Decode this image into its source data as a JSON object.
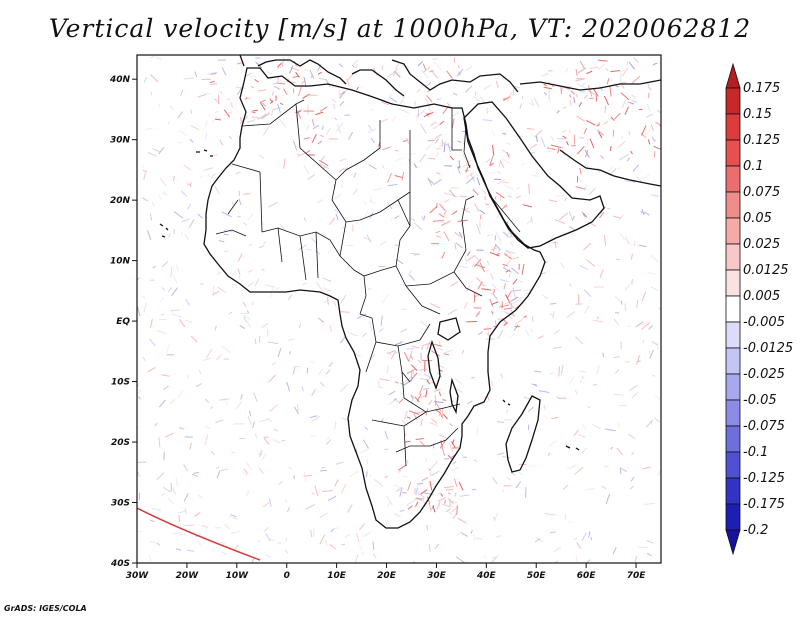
{
  "title": "Vertical velocity [m/s] at 1000hPa, VT: 2020062812",
  "credit": "GrADS: IGES/COLA",
  "map": {
    "lon_range": [
      -30,
      75
    ],
    "lat_range": [
      -40,
      44
    ],
    "lon_ticks": [
      {
        "value": -30,
        "label": "30W"
      },
      {
        "value": -20,
        "label": "20W"
      },
      {
        "value": -10,
        "label": "10W"
      },
      {
        "value": 0,
        "label": "0"
      },
      {
        "value": 10,
        "label": "10E"
      },
      {
        "value": 20,
        "label": "20E"
      },
      {
        "value": 30,
        "label": "30E"
      },
      {
        "value": 40,
        "label": "40E"
      },
      {
        "value": 50,
        "label": "50E"
      },
      {
        "value": 60,
        "label": "60E"
      },
      {
        "value": 70,
        "label": "70E"
      }
    ],
    "lat_ticks": [
      {
        "value": 40,
        "label": "40N"
      },
      {
        "value": 30,
        "label": "30N"
      },
      {
        "value": 20,
        "label": "20N"
      },
      {
        "value": 10,
        "label": "10N"
      },
      {
        "value": 0,
        "label": "EQ"
      },
      {
        "value": -10,
        "label": "10S"
      },
      {
        "value": -20,
        "label": "20S"
      },
      {
        "value": -30,
        "label": "30S"
      },
      {
        "value": -40,
        "label": "40S"
      }
    ]
  },
  "colorbar": {
    "labels": [
      "0.175",
      "0.15",
      "0.125",
      "0.1",
      "0.075",
      "0.05",
      "0.025",
      "0.0125",
      "0.005",
      "-0.005",
      "-0.0125",
      "-0.025",
      "-0.05",
      "-0.075",
      "-0.1",
      "-0.125",
      "-0.175",
      "-0.2"
    ],
    "colors": [
      "#b41e1e",
      "#c82828",
      "#dc3c3c",
      "#e65050",
      "#eb6e6e",
      "#f08c8c",
      "#f5aaaa",
      "#f8c8c8",
      "#fbe2e2",
      "#ffffff",
      "#dcdcfa",
      "#c4c4f5",
      "#a8a8ee",
      "#8c8ce6",
      "#6e6edc",
      "#5050d2",
      "#3232c4",
      "#1e1eb4",
      "#1414a0"
    ]
  }
}
